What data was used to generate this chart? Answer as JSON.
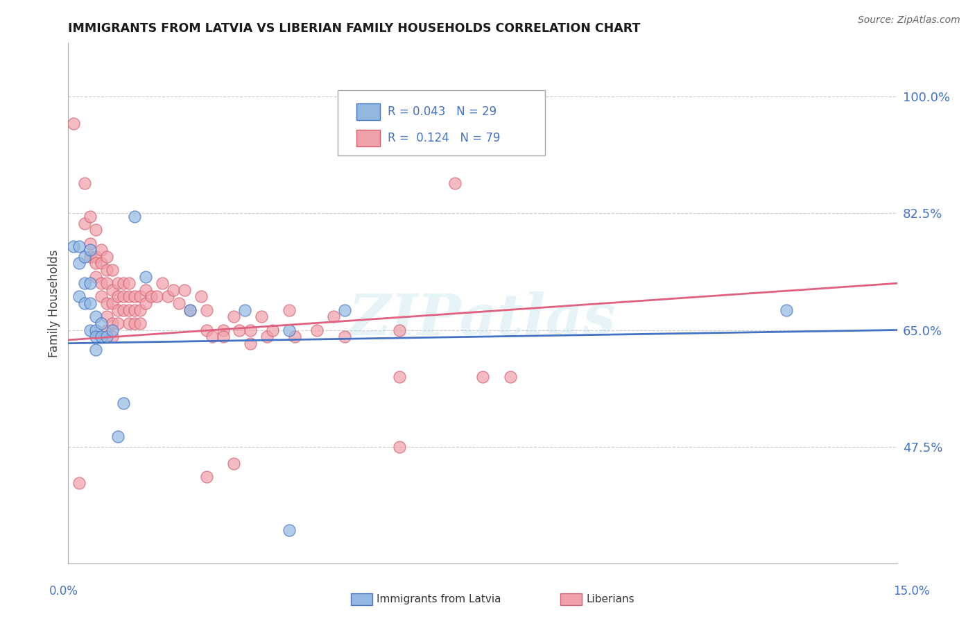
{
  "title": "IMMIGRANTS FROM LATVIA VS LIBERIAN FAMILY HOUSEHOLDS CORRELATION CHART",
  "source": "Source: ZipAtlas.com",
  "ylabel": "Family Households",
  "ytick_labels": [
    "47.5%",
    "65.0%",
    "82.5%",
    "100.0%"
  ],
  "ytick_values": [
    0.475,
    0.65,
    0.825,
    1.0
  ],
  "xmin": 0.0,
  "xmax": 0.15,
  "ymin": 0.3,
  "ymax": 1.08,
  "legend_r1": "R = 0.043",
  "legend_n1": "N = 29",
  "legend_r2": "R =  0.124",
  "legend_n2": "N = 79",
  "color_blue": "#92b8e0",
  "color_pink": "#f0a0a8",
  "color_blue_line": "#4472c4",
  "color_pink_line": "#e06080",
  "color_blue_dark": "#4472c4",
  "color_pink_dark": "#d46070",
  "watermark": "ZIPatlas",
  "blue_points": [
    [
      0.001,
      0.775
    ],
    [
      0.002,
      0.775
    ],
    [
      0.002,
      0.75
    ],
    [
      0.002,
      0.7
    ],
    [
      0.003,
      0.76
    ],
    [
      0.003,
      0.72
    ],
    [
      0.003,
      0.69
    ],
    [
      0.004,
      0.77
    ],
    [
      0.004,
      0.72
    ],
    [
      0.004,
      0.69
    ],
    [
      0.004,
      0.65
    ],
    [
      0.005,
      0.67
    ],
    [
      0.005,
      0.65
    ],
    [
      0.005,
      0.64
    ],
    [
      0.005,
      0.62
    ],
    [
      0.006,
      0.66
    ],
    [
      0.006,
      0.64
    ],
    [
      0.007,
      0.64
    ],
    [
      0.008,
      0.65
    ],
    [
      0.009,
      0.49
    ],
    [
      0.01,
      0.54
    ],
    [
      0.012,
      0.82
    ],
    [
      0.014,
      0.73
    ],
    [
      0.022,
      0.68
    ],
    [
      0.032,
      0.68
    ],
    [
      0.04,
      0.65
    ],
    [
      0.05,
      0.68
    ],
    [
      0.13,
      0.68
    ],
    [
      0.04,
      0.35
    ]
  ],
  "pink_points": [
    [
      0.001,
      0.96
    ],
    [
      0.003,
      0.87
    ],
    [
      0.003,
      0.81
    ],
    [
      0.004,
      0.82
    ],
    [
      0.004,
      0.78
    ],
    [
      0.004,
      0.76
    ],
    [
      0.005,
      0.8
    ],
    [
      0.005,
      0.76
    ],
    [
      0.005,
      0.75
    ],
    [
      0.005,
      0.73
    ],
    [
      0.006,
      0.77
    ],
    [
      0.006,
      0.75
    ],
    [
      0.006,
      0.72
    ],
    [
      0.006,
      0.7
    ],
    [
      0.007,
      0.76
    ],
    [
      0.007,
      0.74
    ],
    [
      0.007,
      0.72
    ],
    [
      0.007,
      0.69
    ],
    [
      0.007,
      0.67
    ],
    [
      0.007,
      0.65
    ],
    [
      0.008,
      0.74
    ],
    [
      0.008,
      0.71
    ],
    [
      0.008,
      0.69
    ],
    [
      0.008,
      0.66
    ],
    [
      0.008,
      0.64
    ],
    [
      0.009,
      0.72
    ],
    [
      0.009,
      0.7
    ],
    [
      0.009,
      0.68
    ],
    [
      0.009,
      0.66
    ],
    [
      0.01,
      0.72
    ],
    [
      0.01,
      0.7
    ],
    [
      0.01,
      0.68
    ],
    [
      0.011,
      0.72
    ],
    [
      0.011,
      0.7
    ],
    [
      0.011,
      0.68
    ],
    [
      0.011,
      0.66
    ],
    [
      0.012,
      0.7
    ],
    [
      0.012,
      0.68
    ],
    [
      0.012,
      0.66
    ],
    [
      0.013,
      0.7
    ],
    [
      0.013,
      0.68
    ],
    [
      0.013,
      0.66
    ],
    [
      0.014,
      0.71
    ],
    [
      0.014,
      0.69
    ],
    [
      0.015,
      0.7
    ],
    [
      0.016,
      0.7
    ],
    [
      0.017,
      0.72
    ],
    [
      0.018,
      0.7
    ],
    [
      0.019,
      0.71
    ],
    [
      0.02,
      0.69
    ],
    [
      0.021,
      0.71
    ],
    [
      0.022,
      0.68
    ],
    [
      0.024,
      0.7
    ],
    [
      0.025,
      0.65
    ],
    [
      0.026,
      0.64
    ],
    [
      0.028,
      0.65
    ],
    [
      0.028,
      0.64
    ],
    [
      0.03,
      0.67
    ],
    [
      0.031,
      0.65
    ],
    [
      0.033,
      0.63
    ],
    [
      0.033,
      0.65
    ],
    [
      0.035,
      0.67
    ],
    [
      0.036,
      0.64
    ],
    [
      0.037,
      0.65
    ],
    [
      0.04,
      0.68
    ],
    [
      0.041,
      0.64
    ],
    [
      0.045,
      0.65
    ],
    [
      0.048,
      0.67
    ],
    [
      0.05,
      0.64
    ],
    [
      0.06,
      0.65
    ],
    [
      0.07,
      0.87
    ],
    [
      0.075,
      0.58
    ],
    [
      0.08,
      0.58
    ],
    [
      0.03,
      0.45
    ],
    [
      0.06,
      0.58
    ],
    [
      0.002,
      0.42
    ],
    [
      0.025,
      0.43
    ],
    [
      0.06,
      0.475
    ],
    [
      0.025,
      0.68
    ]
  ]
}
